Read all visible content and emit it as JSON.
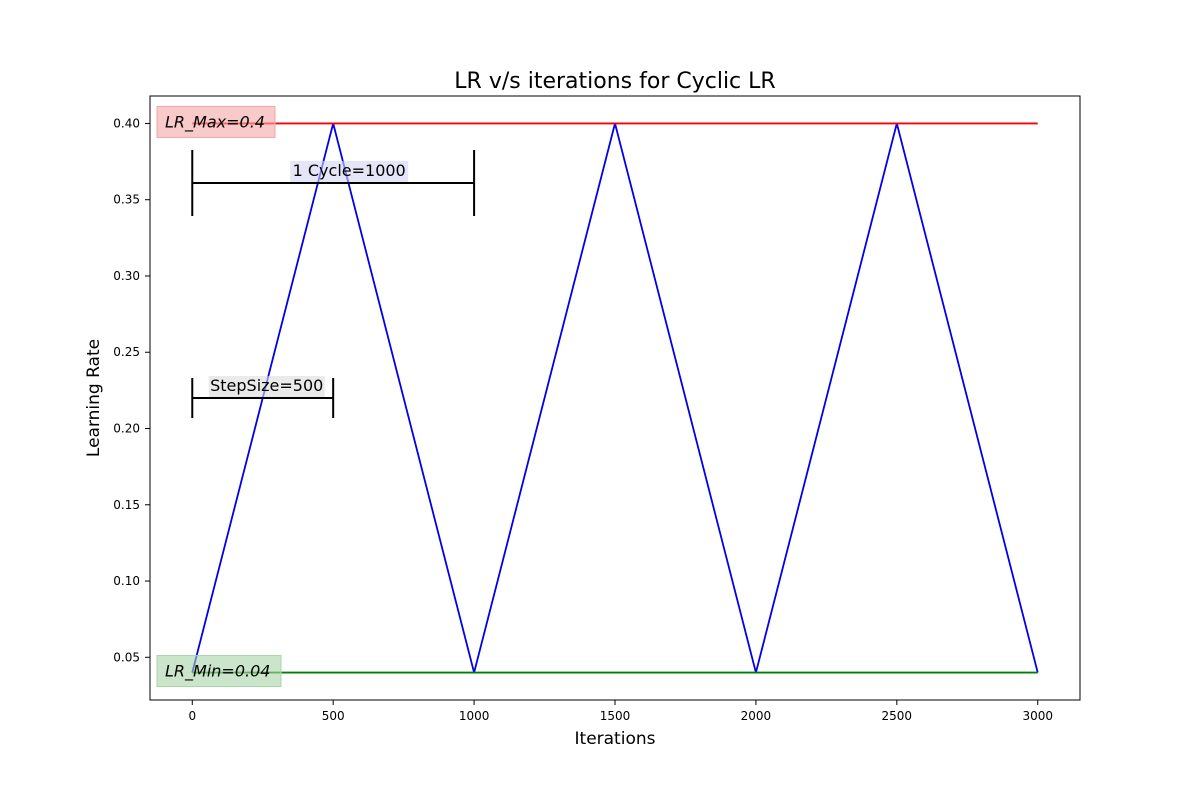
{
  "chart_data": {
    "type": "line",
    "title": "LR v/s iterations for Cyclic LR",
    "xlabel": "Iterations",
    "ylabel": "Learning Rate",
    "xlim": [
      -150,
      3150
    ],
    "ylim": [
      0.022,
      0.418
    ],
    "xticks": [
      0,
      500,
      1000,
      1500,
      2000,
      2500,
      3000
    ],
    "xtick_labels": [
      "0",
      "500",
      "1000",
      "1500",
      "2000",
      "2500",
      "3000"
    ],
    "yticks": [
      0.05,
      0.1,
      0.15,
      0.2,
      0.25,
      0.3,
      0.35,
      0.4
    ],
    "ytick_labels": [
      "0.05",
      "0.10",
      "0.15",
      "0.20",
      "0.25",
      "0.30",
      "0.35",
      "0.40"
    ],
    "grid": false,
    "series": [
      {
        "color": "#0000ee",
        "x": [
          0,
          500,
          1000,
          1500,
          2000,
          2500,
          3000
        ],
        "y": [
          0.04,
          0.4,
          0.04,
          0.4,
          0.04,
          0.4,
          0.04
        ]
      },
      {
        "color": "#ff0000",
        "x": [
          0,
          3000
        ],
        "y": [
          0.4,
          0.4
        ]
      },
      {
        "color": "#008000",
        "x": [
          0,
          3000
        ],
        "y": [
          0.04,
          0.04
        ]
      }
    ],
    "annotations": [
      {
        "text": "LR_Max=0.4",
        "italic": true,
        "box_color": "#f4a6a6",
        "x": -125,
        "y": 0.4
      },
      {
        "text": "LR_Min=0.04",
        "italic": true,
        "box_color": "#a8d4a8",
        "x": -125,
        "y": 0.04
      },
      {
        "text": "1 Cycle=1000",
        "italic": false,
        "box_color": "#d4d4f4",
        "bracket_x": [
          0,
          1000
        ],
        "bracket_y": 0.361
      },
      {
        "text": "StepSize=500",
        "italic": false,
        "box_color": "#dcdcdc",
        "bracket_x": [
          0,
          500
        ],
        "bracket_y": 0.22
      }
    ]
  }
}
